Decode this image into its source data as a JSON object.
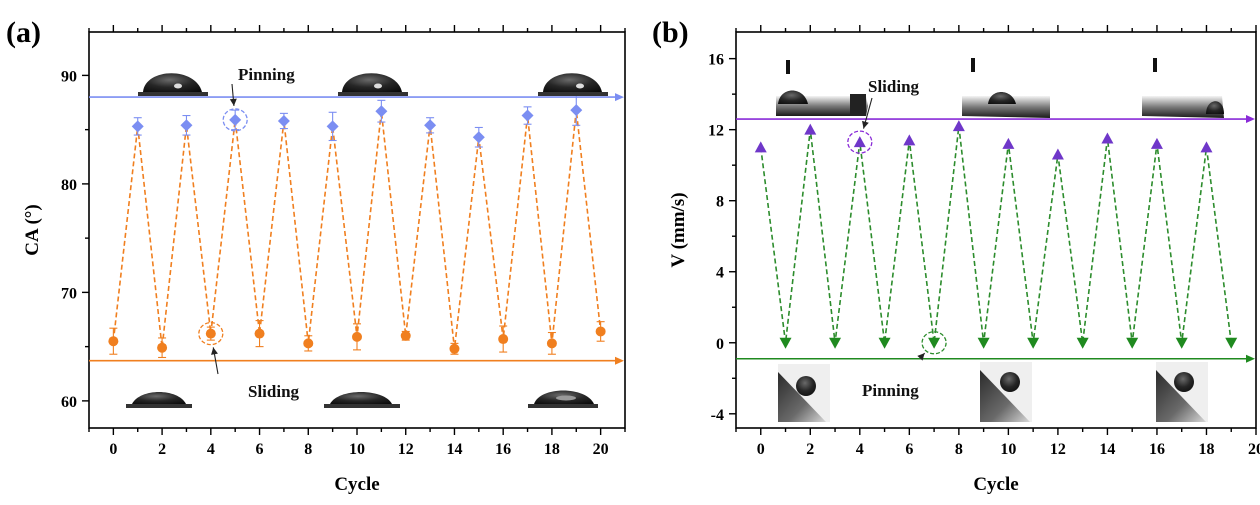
{
  "chart_data": [
    {
      "panel": "(a)",
      "type": "scatter",
      "xlabel": "Cycle",
      "ylabel": "CA (°)",
      "xlim": [
        -1,
        21
      ],
      "ylim": [
        57.5,
        94
      ],
      "xticks": [
        0,
        2,
        4,
        6,
        8,
        10,
        12,
        14,
        16,
        18,
        20
      ],
      "yticks": [
        60,
        70,
        80,
        90
      ],
      "grid": false,
      "series": [
        {
          "color": "#7b8ef2",
          "marker": "diamond",
          "x": [
            1,
            3,
            5,
            7,
            9,
            11,
            13,
            15,
            17,
            19
          ],
          "y": [
            85.3,
            85.4,
            85.9,
            85.8,
            85.3,
            86.7,
            85.4,
            84.3,
            86.3,
            86.8
          ],
          "err": [
            0.8,
            0.9,
            0.9,
            0.7,
            1.3,
            1.0,
            0.7,
            0.9,
            0.8,
            1.4
          ]
        },
        {
          "color": "#f07f1f",
          "marker": "circle",
          "x": [
            0,
            2,
            4,
            6,
            8,
            10,
            12,
            14,
            16,
            18,
            20
          ],
          "y": [
            65.5,
            64.9,
            66.2,
            66.2,
            65.3,
            65.9,
            66.0,
            64.8,
            65.7,
            65.3,
            66.4
          ],
          "err": [
            1.2,
            0.9,
            0.6,
            1.2,
            0.7,
            1.2,
            0.4,
            0.5,
            1.2,
            1.0,
            0.9
          ]
        }
      ],
      "zigzag_color": "#f07f1f",
      "reference_lines": [
        {
          "y": 88.0,
          "color": "#7b8ef2"
        },
        {
          "y": 63.7,
          "color": "#f07f1f"
        }
      ],
      "annotations": [
        {
          "text": "Pinning",
          "target_x": 5,
          "target_y": 85.9
        },
        {
          "text": "Sliding",
          "target_x": 4,
          "target_y": 66.2
        }
      ]
    },
    {
      "panel": "(b)",
      "type": "scatter",
      "xlabel": "Cycle",
      "ylabel": "V (mm/s)",
      "xlim": [
        -1,
        20
      ],
      "ylim": [
        -4.8,
        17.5
      ],
      "xticks": [
        0,
        2,
        4,
        6,
        8,
        10,
        12,
        14,
        16,
        18,
        20
      ],
      "yticks": [
        -4,
        0,
        4,
        8,
        12,
        16
      ],
      "grid": false,
      "series": [
        {
          "color": "#6f37c9",
          "marker": "triangle-up",
          "x": [
            0,
            2,
            4,
            6,
            8,
            10,
            12,
            14,
            16,
            18
          ],
          "y": [
            11.0,
            12.0,
            11.3,
            11.4,
            12.2,
            11.2,
            10.6,
            11.5,
            11.2,
            11.0
          ]
        },
        {
          "color": "#1f8a1f",
          "marker": "triangle-down",
          "x": [
            1,
            3,
            5,
            7,
            9,
            11,
            13,
            15,
            17,
            19
          ],
          "y": [
            0,
            0,
            0,
            0,
            0,
            0,
            0,
            0,
            0,
            0
          ]
        }
      ],
      "zigzag_color": "#2c8c2c",
      "reference_lines": [
        {
          "y": 12.6,
          "color": "#8a2bd8"
        },
        {
          "y": -0.9,
          "color": "#1f8a1f"
        }
      ],
      "annotations": [
        {
          "text": "Sliding",
          "target_x": 4,
          "target_y": 11.3
        },
        {
          "text": "Pinning",
          "target_x": 7,
          "target_y": 0
        }
      ]
    }
  ]
}
